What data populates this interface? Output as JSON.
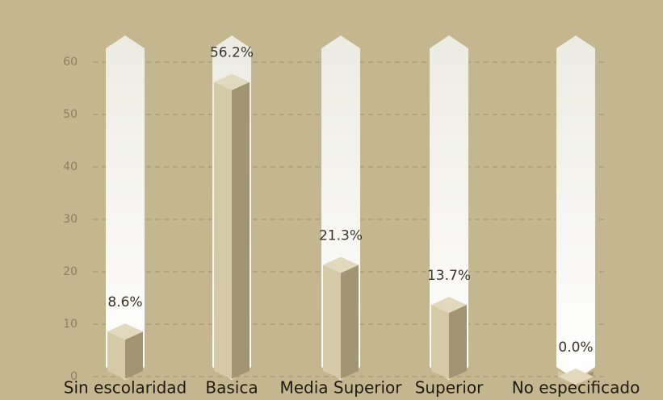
{
  "chart_data": {
    "type": "bar",
    "categories": [
      "Sin escolaridad",
      "Basica",
      "Media Superior",
      "Superior",
      "No especificado"
    ],
    "values": [
      8.6,
      56.2,
      21.3,
      13.7,
      0.0
    ],
    "value_labels": [
      "8.6%",
      "56.2%",
      "21.3%",
      "13.7%",
      "0.0%"
    ],
    "ylim": [
      0,
      65
    ],
    "yticks": [
      0,
      10,
      20,
      30,
      40,
      50,
      60
    ],
    "grid": true
  }
}
